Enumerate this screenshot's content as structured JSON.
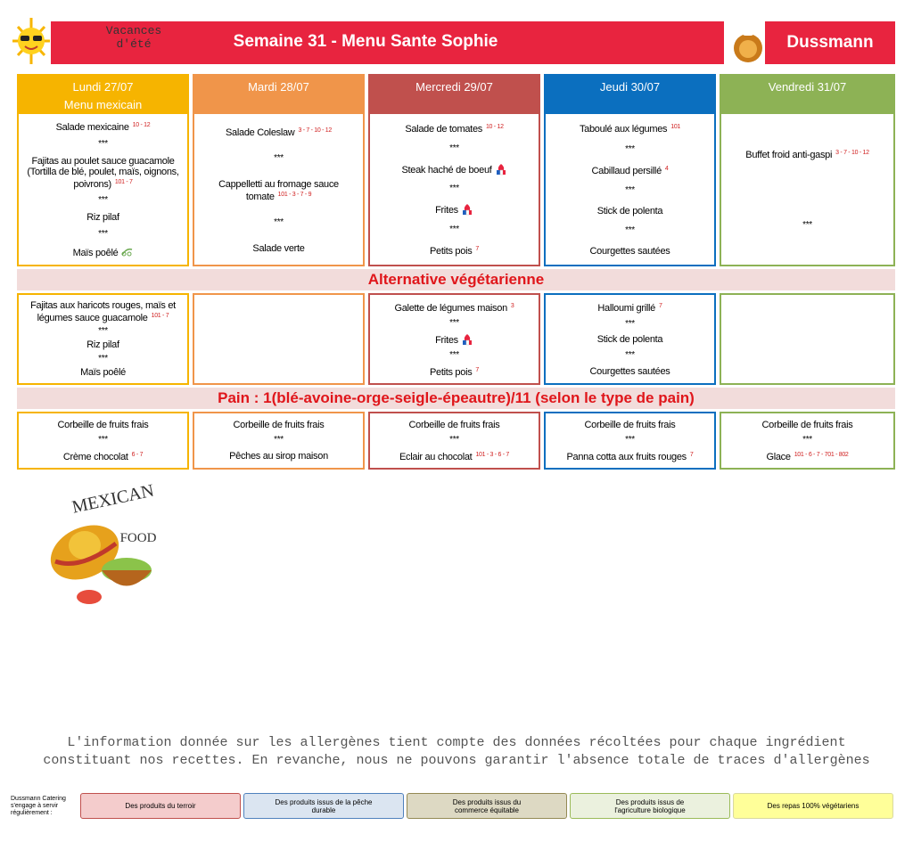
{
  "header": {
    "badge": [
      "Vacances",
      "d'été"
    ],
    "title": "Semaine 31 - Menu Sante Sophie",
    "brand": "Dussmann"
  },
  "days": [
    {
      "name": "Lundi 27/07",
      "subtitle": "Menu mexicain",
      "color": "#f6b400",
      "main": [
        {
          "text": "Salade mexicaine",
          "allergens": "10 - 12"
        },
        {
          "text": "***"
        },
        {
          "text": "Fajitas au poulet sauce guacamole (Tortilla de blé, poulet, maïs, oignons, poivrons)",
          "allergens": "101 - 7"
        },
        {
          "text": "***"
        },
        {
          "text": "Riz pilaf"
        },
        {
          "text": "***"
        },
        {
          "text": "Maïs poêlé",
          "icon": "bio"
        }
      ],
      "veg": [
        {
          "text": "Fajitas aux haricots rouges, maïs et légumes sauce guacamole",
          "allergens": "101 - 7"
        },
        {
          "text": "***"
        },
        {
          "text": "Riz pilaf"
        },
        {
          "text": "***"
        },
        {
          "text": "Maïs poêlé"
        }
      ],
      "dessert": [
        {
          "text": "Corbeille de fruits frais"
        },
        {
          "text": "***"
        },
        {
          "text": "Crème chocolat",
          "allergens": "6 - 7"
        }
      ]
    },
    {
      "name": "Mardi 28/07",
      "color": "#f0954a",
      "main": [
        {
          "text": "Salade Coleslaw",
          "allergens": "3 - 7 - 10 - 12"
        },
        {
          "text": "***"
        },
        {
          "text": "Cappelletti au fromage sauce tomate",
          "allergens": "101 - 3 - 7 - 9"
        },
        {
          "text": "***"
        },
        {
          "text": "Salade verte"
        }
      ],
      "veg": [],
      "dessert": [
        {
          "text": "Corbeille de fruits frais"
        },
        {
          "text": "***"
        },
        {
          "text": "Pêches au sirop maison"
        }
      ]
    },
    {
      "name": "Mercredi 29/07",
      "color": "#c0504d",
      "main": [
        {
          "text": "Salade de tomates",
          "allergens": "10 - 12"
        },
        {
          "text": "***"
        },
        {
          "text": "Steak haché de boeuf",
          "icon": "terroir"
        },
        {
          "text": "***"
        },
        {
          "text": "Frites",
          "icon": "terroir"
        },
        {
          "text": "***"
        },
        {
          "text": "Petits pois",
          "allergens": "7"
        }
      ],
      "veg": [
        {
          "text": "Galette de légumes maison",
          "allergens": "3"
        },
        {
          "text": "***"
        },
        {
          "text": "Frites",
          "icon": "terroir"
        },
        {
          "text": "***"
        },
        {
          "text": "Petits pois",
          "allergens": "7"
        }
      ],
      "dessert": [
        {
          "text": "Corbeille de fruits frais"
        },
        {
          "text": "***"
        },
        {
          "text": "Eclair au chocolat",
          "allergens": "101 - 3 - 6 - 7"
        }
      ]
    },
    {
      "name": "Jeudi 30/07",
      "color": "#0b6fbf",
      "main": [
        {
          "text": "Taboulé aux légumes",
          "allergens": "101"
        },
        {
          "text": "***"
        },
        {
          "text": "Cabillaud persillé",
          "allergens": "4"
        },
        {
          "text": "***"
        },
        {
          "text": "Stick de polenta"
        },
        {
          "text": "***"
        },
        {
          "text": "Courgettes sautées"
        }
      ],
      "veg": [
        {
          "text": "Halloumi grillé",
          "allergens": "7"
        },
        {
          "text": "***"
        },
        {
          "text": "Stick de polenta"
        },
        {
          "text": "***"
        },
        {
          "text": "Courgettes sautées"
        }
      ],
      "dessert": [
        {
          "text": "Corbeille de fruits frais"
        },
        {
          "text": "***"
        },
        {
          "text": "Panna cotta aux fruits rouges",
          "allergens": "7"
        }
      ]
    },
    {
      "name": "Vendredi 31/07",
      "color": "#8db255",
      "main": [
        {
          "text": "Buffet froid anti-gaspi",
          "allergens": "3 - 7 - 10 - 12"
        },
        {
          "text": "***"
        }
      ],
      "veg": [],
      "dessert": [
        {
          "text": "Corbeille de fruits frais"
        },
        {
          "text": "***"
        },
        {
          "text": "Glace",
          "allergens": "101 - 6 - 7 - 701 - 802"
        }
      ]
    }
  ],
  "veg_title": "Alternative végétarienne",
  "bread": "Pain : 1(blé-avoine-orge-seigle-épeautre)/11 (selon le type de pain)",
  "illustration": [
    "MEXICAN",
    "FOOD"
  ],
  "note": [
    "L'information donnée sur les allergènes tient compte des données récoltées pour chaque ingrédient",
    "constituant nos recettes. En revanche, nous ne pouvons garantir l'absence totale de traces d'allergènes"
  ],
  "legend": {
    "intro": "Dussmann Catering s'engage à servir régulièrement :",
    "items": [
      {
        "text": "Des produits du terroir",
        "bg": "#f4cccc",
        "border": "#c0504d"
      },
      {
        "text": "Des produits issus de la pêche durable",
        "bg": "#dbe5f1",
        "border": "#4f81bd"
      },
      {
        "text": "Des produits issus du commerce équitable",
        "bg": "#ddd9c3",
        "border": "#948a54"
      },
      {
        "text": "Des produits issus de l'agriculture biologique",
        "bg": "#ebf1de",
        "border": "#9bbb59"
      },
      {
        "text": "Des repas 100% végétariens",
        "bg": "#ffff99",
        "border": "#d9d9a0"
      }
    ]
  }
}
